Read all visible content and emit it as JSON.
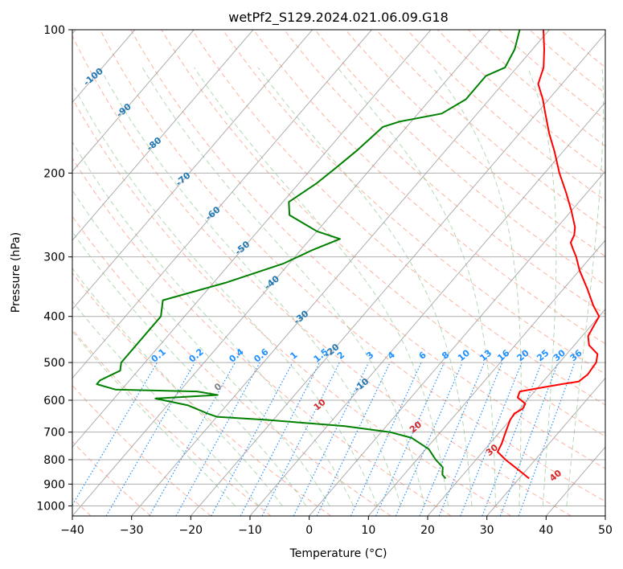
{
  "chart_data": {
    "type": "skew-t",
    "title": "wetPf2_S129.2024.021.06.09.G18",
    "xlabel": "Temperature (°C)",
    "ylabel": "Pressure (hPa)",
    "xlim": [
      -40,
      50
    ],
    "ylim": [
      1050,
      100
    ],
    "y_scale": "log",
    "grid": true,
    "x_ticks": [
      "−40",
      "−30",
      "−20",
      "−10",
      "0",
      "10",
      "20",
      "30",
      "40",
      "50"
    ],
    "y_ticks": [
      "100",
      "200",
      "300",
      "400",
      "500",
      "600",
      "700",
      "800",
      "900",
      "1000"
    ],
    "colors": {
      "temperature": "#ff0000",
      "dewpoint": "#008000",
      "isotherm": "#9a9a9a",
      "dry_adiabat": "#fa8060",
      "moist_adiabat": "#80c080",
      "mixing_ratio": "#1e90ff",
      "dry_adiabat_label": "#1f77b4",
      "moist_adiabat_label": "#d62728",
      "zero_label": "#808080"
    },
    "dry_adiabat_labels": [
      "-100",
      "-90",
      "-80",
      "-70",
      "-60",
      "-50",
      "-40",
      "-30",
      "-20",
      "-10"
    ],
    "moist_adiabat_labels": [
      "0",
      "10",
      "20",
      "30",
      "40"
    ],
    "mixing_ratio_labels": [
      "0.1",
      "0.2",
      "0.4",
      "0.6",
      "1",
      "1.5",
      "2",
      "3",
      "4",
      "6",
      "8",
      "10",
      "13",
      "16",
      "20",
      "25",
      "30",
      "36"
    ],
    "series": [
      {
        "role": "temperature",
        "values": [
          [
            876,
            31.7
          ],
          [
            850,
            29.5
          ],
          [
            800,
            25.0
          ],
          [
            770,
            22.5
          ],
          [
            740,
            22.0
          ],
          [
            700,
            21.0
          ],
          [
            660,
            20.0
          ],
          [
            640,
            19.8
          ],
          [
            625,
            20.5
          ],
          [
            610,
            20.2
          ],
          [
            592,
            18.0
          ],
          [
            575,
            17.5
          ],
          [
            565,
            20.5
          ],
          [
            555,
            23.5
          ],
          [
            548,
            26.0
          ],
          [
            530,
            26.5
          ],
          [
            500,
            26.2
          ],
          [
            480,
            25.2
          ],
          [
            460,
            22.5
          ],
          [
            440,
            21.0
          ],
          [
            420,
            20.5
          ],
          [
            400,
            20.0
          ],
          [
            380,
            17.5
          ],
          [
            350,
            14.0
          ],
          [
            320,
            10.0
          ],
          [
            300,
            7.5
          ],
          [
            290,
            6.0
          ],
          [
            280,
            4.5
          ],
          [
            270,
            4.0
          ],
          [
            260,
            3.0
          ],
          [
            240,
            0.0
          ],
          [
            220,
            -3.5
          ],
          [
            200,
            -7.5
          ],
          [
            180,
            -11.5
          ],
          [
            165,
            -15.0
          ],
          [
            150,
            -18.5
          ],
          [
            140,
            -21.0
          ],
          [
            130,
            -24.0
          ],
          [
            120,
            -25.5
          ],
          [
            110,
            -28.0
          ],
          [
            100,
            -31.0
          ]
        ]
      },
      {
        "role": "dewpoint",
        "values": [
          [
            876,
            17.6
          ],
          [
            860,
            16.5
          ],
          [
            830,
            15.5
          ],
          [
            800,
            13.2
          ],
          [
            760,
            10.5
          ],
          [
            720,
            6.0
          ],
          [
            700,
            1.5
          ],
          [
            680,
            -7.0
          ],
          [
            660,
            -21.0
          ],
          [
            650,
            -30.0
          ],
          [
            640,
            -32.0
          ],
          [
            615,
            -36.5
          ],
          [
            595,
            -43.0
          ],
          [
            585,
            -33.0
          ],
          [
            575,
            -37.0
          ],
          [
            570,
            -51.0
          ],
          [
            555,
            -55.0
          ],
          [
            545,
            -55.0
          ],
          [
            520,
            -53.0
          ],
          [
            500,
            -54.0
          ],
          [
            400,
            -54.0
          ],
          [
            370,
            -56.0
          ],
          [
            340,
            -48.0
          ],
          [
            310,
            -41.0
          ],
          [
            290,
            -38.0
          ],
          [
            275,
            -35.0
          ],
          [
            265,
            -40.0
          ],
          [
            245,
            -47.0
          ],
          [
            230,
            -49.0
          ],
          [
            210,
            -47.0
          ],
          [
            195,
            -46.0
          ],
          [
            180,
            -45.0
          ],
          [
            170,
            -44.5
          ],
          [
            160,
            -44.0
          ],
          [
            156,
            -42.0
          ],
          [
            150,
            -36.0
          ],
          [
            140,
            -34.0
          ],
          [
            125,
            -34.0
          ],
          [
            120,
            -32.0
          ],
          [
            110,
            -33.0
          ],
          [
            100,
            -35.0
          ]
        ]
      }
    ]
  }
}
